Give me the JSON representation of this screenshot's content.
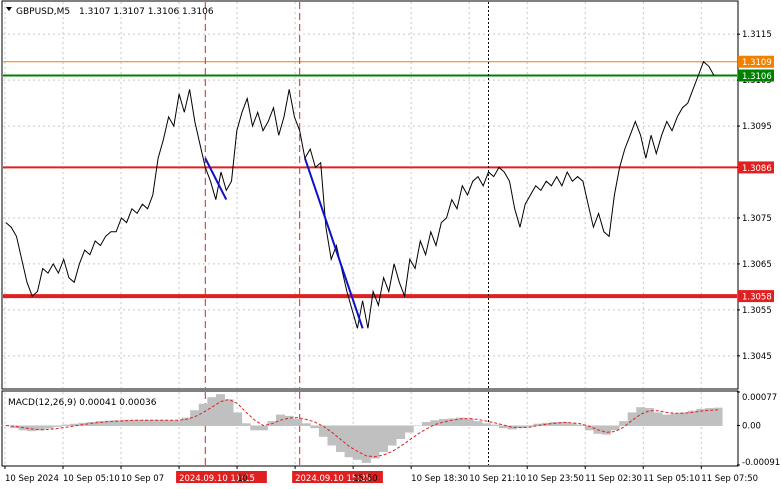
{
  "header": {
    "symbol_label": "GBPUSD,M5",
    "ohlc": "1.3107 1.3107 1.3106 1.3106",
    "dropdown_icon": "triangle-down-icon"
  },
  "colors": {
    "price_line": "#000000",
    "grid": "#c8c8c8",
    "level_red": "#e02020",
    "level_green": "#008000",
    "level_orange": "#f08000",
    "trend_blue": "#1010c8",
    "vline_red": "#e02020",
    "macd_hist": "#c0c0c0",
    "macd_signal": "#e02020",
    "badge_text": "#ffffff"
  },
  "chart_data": [
    {
      "type": "line",
      "title": "GBPUSD,M5",
      "ylim": [
        1.3038,
        1.3122
      ],
      "y_ticks": [
        "1.3115",
        "1.3105",
        "1.3095",
        "1.3086",
        "1.3075",
        "1.3065",
        "1.3055",
        "1.3045"
      ],
      "x_labels": [
        "10 Sep 2024",
        "10 Sep 05:10",
        "10 Sep 07",
        "2024.09.10 11:15",
        "10",
        "2024.09.10 15:25",
        "15:50",
        "10 Sep 18:30",
        "10 Sep 21:10",
        "10 Sep 23:50",
        "11 Sep 02:30",
        "11 Sep 05:10",
        "11 Sep 07:50"
      ],
      "highlighted_time_labels": [
        "2024.09.10 11:15",
        "2024.09.10 15:25"
      ],
      "grid": true,
      "series": [
        {
          "values": [
            1.3074,
            1.3073,
            1.3071,
            1.3066,
            1.3061,
            1.3058,
            1.3059,
            1.3064,
            1.3063,
            1.3065,
            1.3063,
            1.3066,
            1.3062,
            1.3061,
            1.3065,
            1.3068,
            1.3067,
            1.307,
            1.3069,
            1.3071,
            1.3072,
            1.3072,
            1.3075,
            1.3074,
            1.3077,
            1.3076,
            1.3078,
            1.3077,
            1.308,
            1.3088,
            1.3092,
            1.3097,
            1.3095,
            1.3102,
            1.3098,
            1.3103,
            1.3096,
            1.3091,
            1.3086,
            1.3083,
            1.3079,
            1.3085,
            1.3081,
            1.3083,
            1.3094,
            1.3098,
            1.3101,
            1.3095,
            1.3098,
            1.3094,
            1.3096,
            1.3099,
            1.3093,
            1.3097,
            1.3103,
            1.3097,
            1.3094,
            1.3088,
            1.309,
            1.3086,
            1.3087,
            1.3073,
            1.3066,
            1.3069,
            1.3064,
            1.3059,
            1.3055,
            1.3051,
            1.3057,
            1.3051,
            1.3059,
            1.3056,
            1.3062,
            1.3059,
            1.3065,
            1.3061,
            1.3058,
            1.3066,
            1.3064,
            1.307,
            1.3067,
            1.3072,
            1.3069,
            1.3074,
            1.3075,
            1.3079,
            1.3077,
            1.3082,
            1.308,
            1.3083,
            1.3084,
            1.3082,
            1.3085,
            1.3084,
            1.3086,
            1.3085,
            1.3083,
            1.3077,
            1.3073,
            1.3078,
            1.308,
            1.3082,
            1.3081,
            1.3083,
            1.3082,
            1.3084,
            1.3082,
            1.3085,
            1.3083,
            1.3084,
            1.3083,
            1.3078,
            1.3073,
            1.3076,
            1.3072,
            1.3071,
            1.308,
            1.3086,
            1.309,
            1.3093,
            1.3096,
            1.3093,
            1.3088,
            1.3093,
            1.3089,
            1.3093,
            1.3096,
            1.3094,
            1.3097,
            1.3099,
            1.31,
            1.3103,
            1.3106,
            1.3109,
            1.3108,
            1.3106
          ]
        }
      ],
      "levels": [
        {
          "value": 1.3109,
          "label": "1.3109",
          "color": "level_orange",
          "weight": "thin"
        },
        {
          "value": 1.3106,
          "label": "1.3106",
          "color": "level_green",
          "weight": "medium"
        },
        {
          "value": 1.3086,
          "label": "1.3086",
          "color": "level_red",
          "weight": "medium"
        },
        {
          "value": 1.3058,
          "label": "1.3058",
          "color": "level_red",
          "weight": "thick"
        }
      ],
      "trend_segments": [
        {
          "from_index": 38,
          "to_index": 42,
          "from": 1.3088,
          "to": 1.3079
        },
        {
          "from_index": 57,
          "to_index": 68,
          "from": 1.3088,
          "to": 1.3051
        }
      ],
      "vertical_markers": [
        {
          "index": 38,
          "style": "dashed",
          "color": "vline_red"
        },
        {
          "index": 56,
          "style": "dashed",
          "color": "vline_red"
        },
        {
          "index": 92,
          "style": "dotted",
          "color": "price_line"
        }
      ]
    },
    {
      "type": "bar",
      "title": "MACD(12,26,9) 0.00041 0.00036",
      "ylim": [
        -0.00091,
        0.00077
      ],
      "y_ticks": [
        "0.00077",
        "0.00",
        "-0.00091"
      ],
      "zero_label": "0.00",
      "macd": [
        0,
        -5e-05,
        -0.0001,
        -0.00012,
        -0.0001,
        -6e-05,
        -2e-05,
        2e-05,
        4e-05,
        6e-05,
        8e-05,
        0.0001,
        0.00011,
        0.00012,
        0.00013,
        0.00013,
        0.00013,
        0.00013,
        0.00013,
        0.00012,
        0.00012,
        0.00018,
        0.00035,
        0.0005,
        0.00065,
        0.00072,
        0.0006,
        0.0003,
        5e-05,
        -0.0001,
        -0.0001,
        0.0001,
        0.00025,
        0.00022,
        0.00015,
        5e-05,
        -5e-05,
        -0.00025,
        -0.00045,
        -0.0006,
        -0.00072,
        -0.00078,
        -0.00085,
        -0.00075,
        -0.0006,
        -0.00045,
        -0.0003,
        -0.00015,
        0,
        8e-05,
        0.00012,
        0.00015,
        0.00016,
        0.00018,
        0.00015,
        0.0001,
        5e-05,
        2e-05,
        -5e-05,
        -8e-05,
        -5e-05,
        -2e-05,
        4e-05,
        6e-05,
        8e-05,
        8e-05,
        5e-05,
        2e-05,
        -0.0001,
        -0.00018,
        -0.0002,
        -0.0001,
        0.0001,
        0.0003,
        0.00042,
        0.0004,
        0.0003,
        0.00025,
        0.00028,
        0.0003,
        0.00034,
        0.00038,
        0.0004,
        0.00041
      ],
      "signal": [
        0,
        -2e-05,
        -5e-05,
        -8e-05,
        -0.0001,
        -9e-05,
        -7e-05,
        -4e-05,
        -1e-05,
        2e-05,
        5e-05,
        7e-05,
        9e-05,
        0.0001,
        0.00011,
        0.00012,
        0.00012,
        0.00012,
        0.00012,
        0.00012,
        0.00012,
        0.00014,
        0.0002,
        0.0003,
        0.00042,
        0.00055,
        0.0006,
        0.0005,
        0.0003,
        0.00012,
        0,
        4e-05,
        0.00012,
        0.00017,
        0.00018,
        0.00014,
        8e-05,
        -2e-05,
        -0.00016,
        -0.00032,
        -0.00048,
        -0.0006,
        -0.0007,
        -0.00072,
        -0.00068,
        -0.0006,
        -0.00048,
        -0.00034,
        -0.0002,
        -8e-05,
        2e-05,
        8e-05,
        0.00012,
        0.00015,
        0.00016,
        0.00014,
        0.0001,
        6e-05,
        1e-05,
        -4e-05,
        -5e-05,
        -4e-05,
        0,
        3e-05,
        5e-05,
        7e-05,
        6e-05,
        4e-05,
        -2e-05,
        -0.0001,
        -0.00016,
        -0.00014,
        -4e-05,
        0.00012,
        0.00026,
        0.00034,
        0.00034,
        0.0003,
        0.00028,
        0.00028,
        0.0003,
        0.00033,
        0.00035,
        0.00036
      ]
    }
  ]
}
